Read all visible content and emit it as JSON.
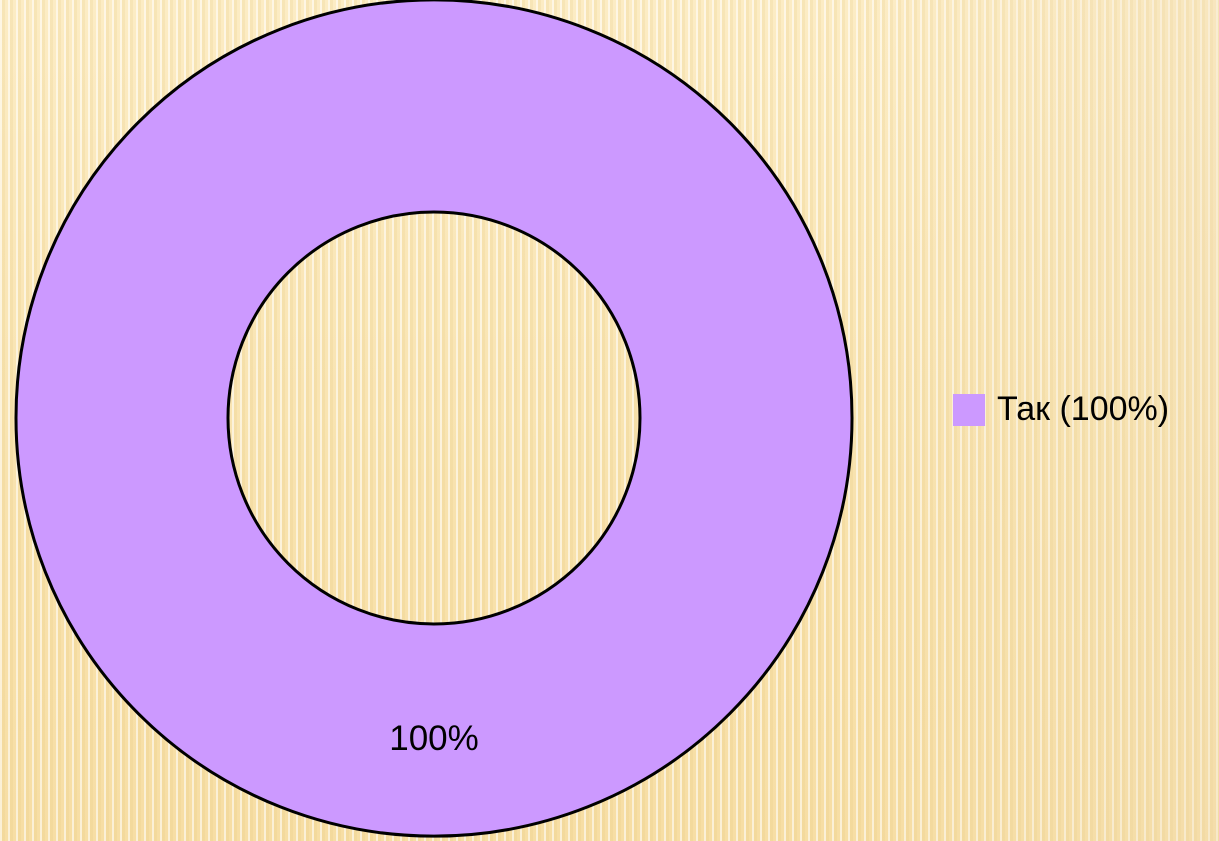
{
  "chart_data": {
    "type": "pie",
    "variant": "doughnut",
    "title": "",
    "slices": [
      {
        "label": "Так (100%)",
        "value": 100,
        "data_label": "100%",
        "color": "#cc99ff"
      }
    ],
    "outline_color": "#000000",
    "legend_position": "right"
  }
}
